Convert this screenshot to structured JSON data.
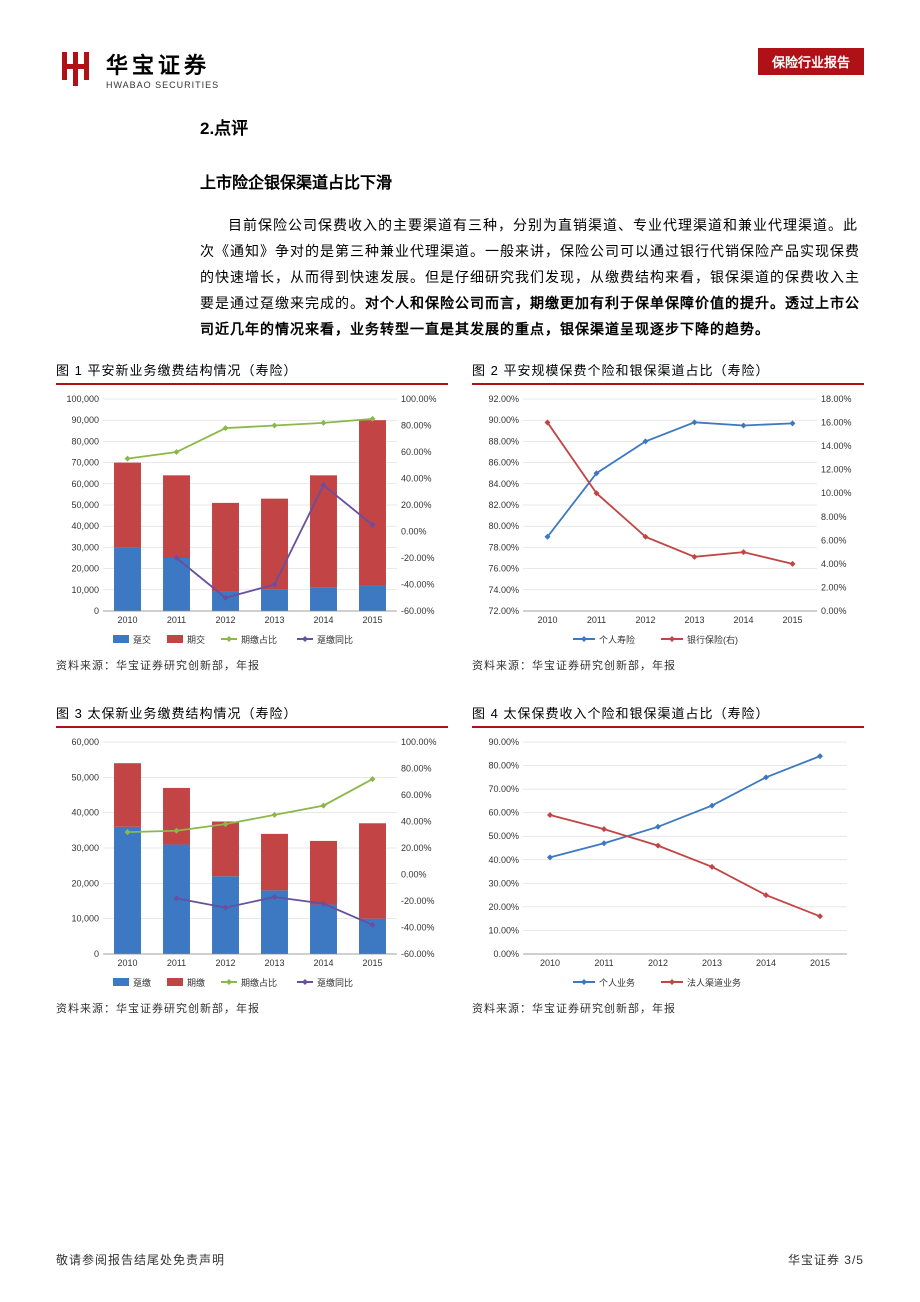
{
  "header": {
    "logo_cn": "华宝证券",
    "logo_en": "HWABAO SECURITIES",
    "badge": "保险行业报告",
    "brand_color": "#b01116"
  },
  "section_title": "2.点评",
  "sub_title": "上市险企银保渠道占比下滑",
  "paragraph_plain": "目前保险公司保费收入的主要渠道有三种，分别为直销渠道、专业代理渠道和兼业代理渠道。此次《通知》争对的是第三种兼业代理渠道。一般来讲，保险公司可以通过银行代销保险产品实现保费的快速增长，从而得到快速发展。但是仔细研究我们发现，从缴费结构来看，银保渠道的保费收入主要是通过趸缴来完成的。",
  "paragraph_bold": "对个人和保险公司而言，期缴更加有利于保单保障价值的提升。透过上市公司近几年的情况来看，业务转型一直是其发展的重点，银保渠道呈现逐步下降的趋势。",
  "source_label": "资料来源：华宝证券研究创新部，年报",
  "chart1": {
    "title": "图 1  平安新业务缴费结构情况（寿险）",
    "type": "combo-bar-line",
    "categories": [
      "2010",
      "2011",
      "2012",
      "2013",
      "2014",
      "2015"
    ],
    "bar1_label": "趸交",
    "bar1_color": "#3d78c2",
    "bar2_label": "期交",
    "bar2_color": "#c24444",
    "bar1_values": [
      30000,
      25000,
      9000,
      10000,
      11000,
      12000
    ],
    "bar2_values": [
      40000,
      39000,
      42000,
      43000,
      53000,
      78000
    ],
    "line1_label": "期缴占比",
    "line1_color": "#8bb84a",
    "line1_values": [
      55,
      60,
      78,
      80,
      82,
      85
    ],
    "line2_label": "趸缴同比",
    "line2_color": "#6a4ea0",
    "line2_values": [
      null,
      -20,
      -50,
      -40,
      35,
      5
    ],
    "left_min": 0,
    "left_max": 100000,
    "left_step": 10000,
    "right_min": -60,
    "right_max": 100,
    "right_step": 20,
    "right_suffix": ".00%",
    "grid_color": "#d0d0d0"
  },
  "chart2": {
    "title": "图 2  平安规模保费个险和银保渠道占比（寿险）",
    "type": "dual-line",
    "categories": [
      "2010",
      "2011",
      "2012",
      "2013",
      "2014",
      "2015"
    ],
    "line1_label": "个人寿险",
    "line1_color": "#3d78c2",
    "line1_values": [
      79.0,
      85.0,
      88.0,
      89.8,
      89.5,
      89.7
    ],
    "line2_label": "银行保险(右)",
    "line2_color": "#c24444",
    "line2_values": [
      16.0,
      10.0,
      6.3,
      4.6,
      5.0,
      4.0
    ],
    "left_min": 72,
    "left_max": 92,
    "left_step": 2,
    "left_suffix": ".00%",
    "right_min": 0,
    "right_max": 18,
    "right_step": 2,
    "right_suffix": ".00%",
    "grid_color": "#d0d0d0"
  },
  "chart3": {
    "title": "图 3  太保新业务缴费结构情况（寿险）",
    "type": "combo-bar-line",
    "categories": [
      "2010",
      "2011",
      "2012",
      "2013",
      "2014",
      "2015"
    ],
    "bar1_label": "趸缴",
    "bar1_color": "#3d78c2",
    "bar2_label": "期缴",
    "bar2_color": "#c24444",
    "bar1_values": [
      36000,
      31000,
      22000,
      18000,
      14000,
      10000
    ],
    "bar2_values": [
      18000,
      16000,
      15500,
      16000,
      18000,
      27000
    ],
    "line1_label": "期缴占比",
    "line1_color": "#8bb84a",
    "line1_values": [
      32,
      33,
      38,
      45,
      52,
      72
    ],
    "line2_label": "趸缴同比",
    "line2_color": "#6a4ea0",
    "line2_values": [
      null,
      -18,
      -25,
      -17,
      -22,
      -38
    ],
    "left_min": 0,
    "left_max": 60000,
    "left_step": 10000,
    "right_min": -60,
    "right_max": 100,
    "right_step": 20,
    "right_suffix": ".00%",
    "grid_color": "#d0d0d0"
  },
  "chart4": {
    "title": "图 4  太保保费收入个险和银保渠道占比（寿险）",
    "type": "dual-line",
    "categories": [
      "2010",
      "2011",
      "2012",
      "2013",
      "2014",
      "2015"
    ],
    "line1_label": "个人业务",
    "line1_color": "#3d78c2",
    "line1_values": [
      41,
      47,
      54,
      63,
      75,
      84
    ],
    "line2_label": "法人渠道业务",
    "line2_color": "#c24444",
    "line2_values": [
      59,
      53,
      46,
      37,
      25,
      16
    ],
    "left_min": 0,
    "left_max": 90,
    "left_step": 10,
    "left_suffix": ".00%",
    "right_min": 0,
    "right_max": 90,
    "right_step": 10,
    "grid_color": "#d0d0d0"
  },
  "footer": {
    "disclaimer": "敬请参阅报告结尾处免责声明",
    "pager": "华宝证券 3/5"
  }
}
